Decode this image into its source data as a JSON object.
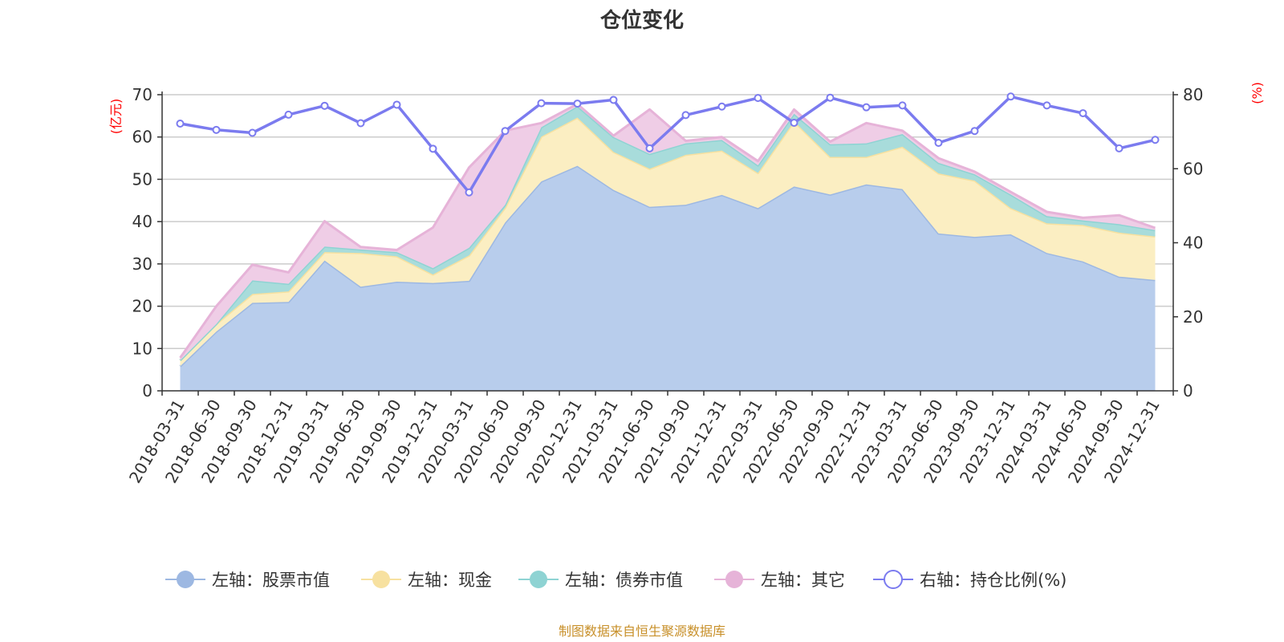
{
  "chart_data": {
    "type": "area",
    "title": "仓位变化",
    "source_note": "制图数据来自恒生聚源数据库",
    "left_axis": {
      "unit": "(亿元)",
      "ylim": [
        0,
        70
      ],
      "ticks": [
        0,
        10,
        20,
        30,
        40,
        50,
        60,
        70
      ]
    },
    "right_axis": {
      "unit": "(%)",
      "ylim": [
        0,
        80
      ],
      "ticks": [
        0,
        20,
        40,
        60,
        80
      ]
    },
    "grid": true,
    "legend_position": "bottom",
    "categories": [
      "2018-03-31",
      "2018-06-30",
      "2018-09-30",
      "2018-12-31",
      "2019-03-31",
      "2019-06-30",
      "2019-09-30",
      "2019-12-31",
      "2020-03-31",
      "2020-06-30",
      "2020-09-30",
      "2020-12-31",
      "2021-03-31",
      "2021-06-30",
      "2021-09-30",
      "2021-12-31",
      "2022-03-31",
      "2022-06-30",
      "2022-09-30",
      "2022-12-31",
      "2023-03-31",
      "2023-06-30",
      "2023-09-30",
      "2023-12-31",
      "2024-03-31",
      "2024-06-30",
      "2024-09-30",
      "2024-12-31"
    ],
    "series": [
      {
        "name": "左轴：股票市值",
        "axis": "left",
        "stack": "total",
        "color": "#9db8e2",
        "fill": "#b8cdec",
        "values": [
          5.8,
          14.0,
          20.8,
          21.0,
          30.8,
          24.6,
          25.8,
          25.5,
          26.0,
          39.8,
          49.5,
          53.2,
          47.5,
          43.5,
          44.0,
          46.3,
          43.2,
          48.3,
          46.4,
          48.8,
          47.7,
          37.2,
          36.4,
          37.0,
          32.6,
          30.6,
          27.0,
          26.2
        ]
      },
      {
        "name": "左轴：现金",
        "axis": "left",
        "stack": "total",
        "color": "#f7e1a0",
        "fill": "#fbeec2",
        "values": [
          1.4,
          1.8,
          2.1,
          2.5,
          2.0,
          8.0,
          6.0,
          2.0,
          6.0,
          3.5,
          10.6,
          11.4,
          9.0,
          9.0,
          11.8,
          10.5,
          8.3,
          15.4,
          8.9,
          6.5,
          10.0,
          14.2,
          13.3,
          6.2,
          7.0,
          8.6,
          10.4,
          10.3
        ]
      },
      {
        "name": "左轴：债券市值",
        "axis": "left",
        "stack": "total",
        "color": "#8ed3d3",
        "fill": "#a8dcdb",
        "values": [
          0,
          0,
          3.2,
          1.8,
          1.3,
          0.8,
          1.0,
          1.5,
          1.8,
          0.7,
          2.2,
          2.7,
          3.5,
          3.5,
          2.7,
          2.5,
          1.8,
          1.8,
          3.0,
          3.2,
          3.0,
          2.5,
          1.5,
          3.2,
          1.7,
          1.1,
          2.0,
          1.5
        ]
      },
      {
        "name": "左轴：其它",
        "axis": "left",
        "stack": "total",
        "color": "#e6b3d8",
        "fill": "#efcde6",
        "values": [
          0.6,
          4.2,
          3.7,
          2.7,
          6.0,
          0.6,
          0.5,
          9.6,
          19.0,
          17.5,
          1.0,
          0.5,
          0.3,
          10.5,
          0.6,
          0.7,
          1.0,
          1.0,
          0.6,
          4.8,
          0.8,
          1.1,
          0.6,
          0.6,
          1.0,
          0.6,
          2.1,
          0.5
        ]
      },
      {
        "name": "右轴：持仓比例(%)",
        "axis": "right",
        "type": "line",
        "color": "#7b7bef",
        "values": [
          72.2,
          70.5,
          69.7,
          74.6,
          77.0,
          72.3,
          77.3,
          65.4,
          53.6,
          70.2,
          77.7,
          77.6,
          78.6,
          65.5,
          74.5,
          76.8,
          79.1,
          72.4,
          79.2,
          76.6,
          77.1,
          67.0,
          70.2,
          79.5,
          77.1,
          75.0,
          65.5,
          67.8
        ]
      }
    ]
  }
}
